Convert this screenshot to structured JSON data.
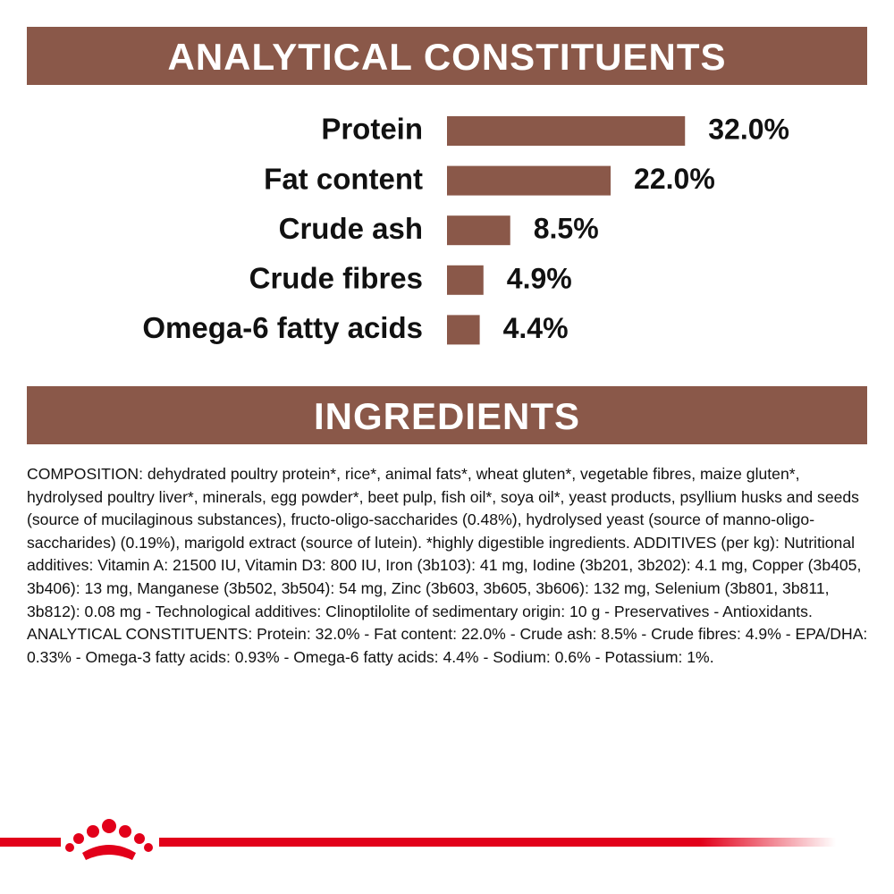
{
  "chart_data": {
    "type": "bar",
    "orientation": "horizontal",
    "title": "ANALYTICAL CONSTITUENTS",
    "categories": [
      "Protein",
      "Fat content",
      "Crude ash",
      "Crude fibres",
      "Omega-6 fatty acids"
    ],
    "values": [
      32.0,
      22.0,
      8.5,
      4.9,
      4.4
    ],
    "value_labels": [
      "32.0%",
      "22.0%",
      "8.5%",
      "4.9%",
      "4.4%"
    ],
    "color": "#8a5849"
  },
  "ingredients": {
    "title": "INGREDIENTS",
    "text": "COMPOSITION: dehydrated poultry protein*, rice*, animal fats*, wheat gluten*, vegetable fibres, maize gluten*, hydrolysed poultry liver*, minerals, egg powder*, beet pulp, fish oil*, soya oil*, yeast products, psyllium husks and seeds (source of mucilaginous substances), fructo-oligo-saccharides (0.48%), hydrolysed yeast (source of manno-oligo-saccharides) (0.19%), marigold extract (source of lutein). *highly digestible ingredients. ADDITIVES (per kg): Nutritional additives: Vitamin A: 21500 IU, Vitamin D3: 800 IU, Iron (3b103): 41 mg, Iodine (3b201, 3b202): 4.1 mg, Copper (3b405, 3b406): 13 mg, Manganese (3b502, 3b504): 54 mg, Zinc (3b603, 3b605, 3b606): 132 mg, Selenium (3b801, 3b811, 3b812): 0.08 mg - Technological additives: Clinoptilolite of sedimentary origin: 10 g - Preservatives - Antioxidants. ANALYTICAL CONSTITUENTS: Protein: 32.0% - Fat content: 22.0% - Crude ash: 8.5% - Crude fibres: 4.9% - EPA/DHA: 0.33% - Omega-3 fatty acids: 0.93% - Omega-6 fatty acids: 4.4% - Sodium: 0.6% - Potassium: 1%."
  }
}
